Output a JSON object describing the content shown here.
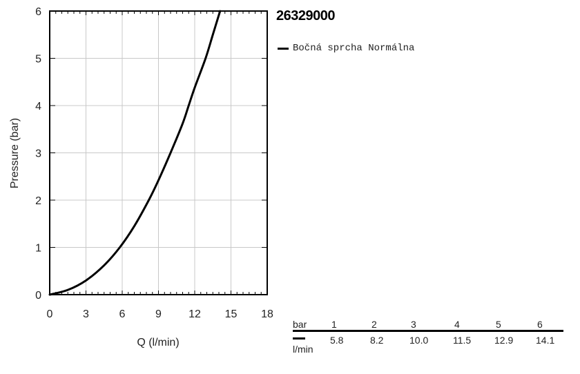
{
  "product": {
    "title": "26329000"
  },
  "legend": {
    "label": "Bočná sprcha Normálna"
  },
  "chart_data": {
    "type": "line",
    "xlabel": "Q (l/min)",
    "ylabel": "Pressure (bar)",
    "xlim": [
      0,
      18
    ],
    "ylim": [
      0,
      6
    ],
    "xticks": [
      0,
      3,
      6,
      9,
      12,
      15,
      18
    ],
    "yticks": [
      0,
      1,
      2,
      3,
      4,
      5,
      6
    ],
    "grid": true,
    "series": [
      {
        "name": "Bočná sprcha Normálna",
        "color": "#000000",
        "x": [
          0,
          1.5,
          3,
          4.5,
          5.8,
          7,
          8.2,
          9,
          10,
          11,
          11.5,
          12,
          12.9,
          13.5,
          14.1
        ],
        "y": [
          0,
          0.1,
          0.3,
          0.62,
          1,
          1.45,
          2,
          2.42,
          3,
          3.62,
          4,
          4.38,
          5,
          5.5,
          6
        ]
      }
    ]
  },
  "pq_table": {
    "pressure_label": "bar",
    "flow_label": "l/min",
    "pressures": [
      "1",
      "2",
      "3",
      "4",
      "5",
      "6"
    ],
    "flows": [
      "5.8",
      "8.2",
      "10.0",
      "11.5",
      "12.9",
      "14.1"
    ]
  }
}
